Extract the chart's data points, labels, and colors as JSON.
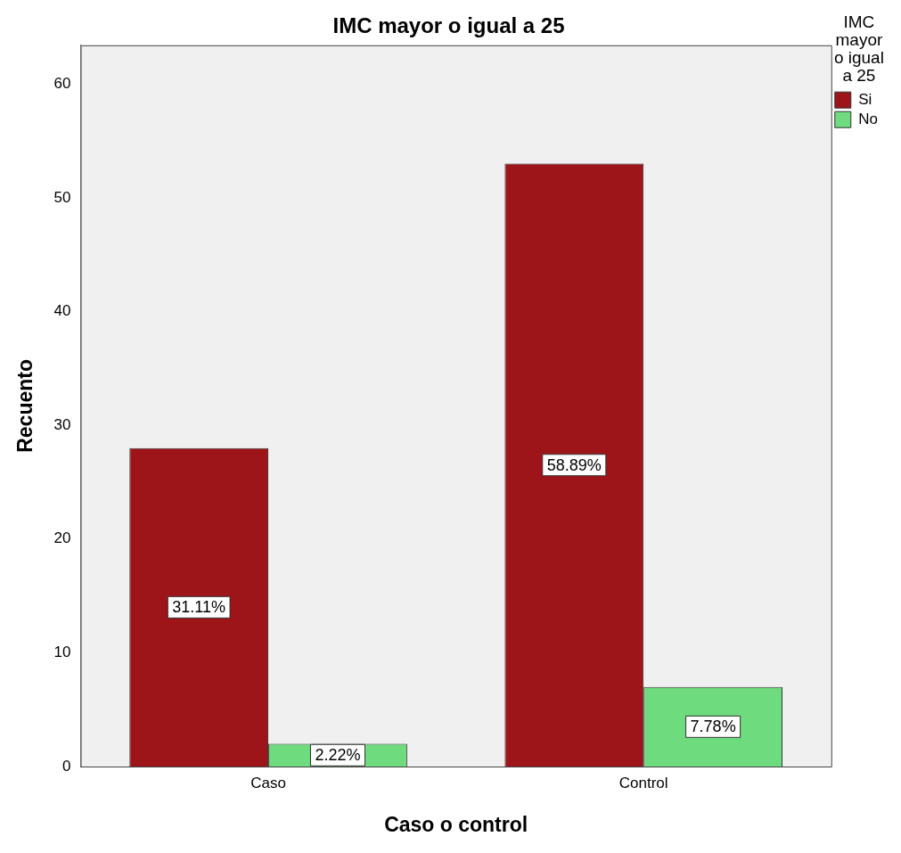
{
  "chart_data": {
    "type": "bar",
    "title": "IMC mayor o igual a 25",
    "xlabel": "Caso o control",
    "ylabel": "Recuento",
    "legend_title": "IMC mayor o igual a 25",
    "categories": [
      "Caso",
      "Control"
    ],
    "series": [
      {
        "name": "Si",
        "color": "#9e1519",
        "values": [
          28,
          53
        ]
      },
      {
        "name": "No",
        "color": "#6ddb7e",
        "values": [
          2,
          7
        ]
      }
    ],
    "annotations": [
      {
        "text": "31.11%",
        "x": "Caso",
        "y": 14
      },
      {
        "text": "2.22%",
        "x": "Caso",
        "y": 1
      },
      {
        "text": "58.89%",
        "x": "Control",
        "y": 26.5
      },
      {
        "text": "7.78%",
        "x": "Control",
        "y": 3.5
      }
    ],
    "ylim": [
      0,
      63.4
    ],
    "yticks": [
      0,
      10,
      20,
      30,
      40,
      50,
      60
    ],
    "grid": false,
    "legend": "right"
  }
}
